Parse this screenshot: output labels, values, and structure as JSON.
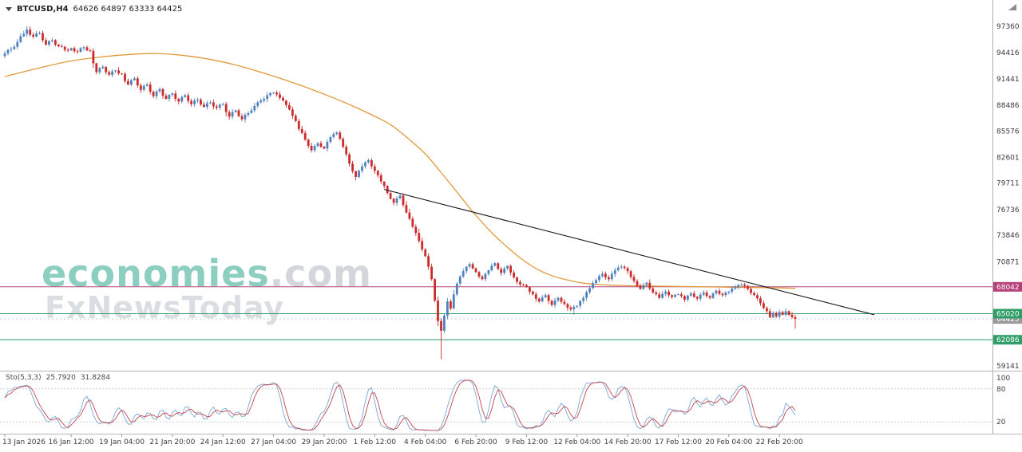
{
  "window": {
    "symbol_period": "BTCUSD,H4",
    "ohlc": "64626 64897 63333 64425"
  },
  "watermark": {
    "brand": "economies",
    "suffix": ".com",
    "subtitle": "FxNewsToday"
  },
  "indicator": {
    "name": "Sto(5,3,3)",
    "main_value": "25.7920",
    "signal_value": "31.8284"
  },
  "chart_data": {
    "type": "candlestick",
    "symbol": "BTCUSD",
    "timeframe": "H4",
    "current_bar": {
      "open": 64626,
      "high": 64897,
      "low": 63333,
      "close": 64425
    },
    "price_axis_ticks": [
      97360,
      94416,
      91441,
      88486,
      85576,
      82601,
      79711,
      76736,
      73846,
      70871,
      59141
    ],
    "line_levels": [
      {
        "price": 68042,
        "label": "68042",
        "color": "#b5407a"
      },
      {
        "price": 65020,
        "label": "65020",
        "color": "#2f9e68"
      },
      {
        "price": 62086,
        "label": "62086",
        "color": "#2f9e68"
      }
    ],
    "bid": {
      "price": 64425,
      "label": "64425",
      "color": "#9a9a9a"
    },
    "x_ticks": [
      {
        "i": 0,
        "label": "13 Jan 2026"
      },
      {
        "i": 21,
        "label": "16 Jan 12:00"
      },
      {
        "i": 37,
        "label": "19 Jan 04:00"
      },
      {
        "i": 53,
        "label": "21 Jan 20:00"
      },
      {
        "i": 69,
        "label": "24 Jan 12:00"
      },
      {
        "i": 85,
        "label": "27 Jan 04:00"
      },
      {
        "i": 101,
        "label": "29 Jan 20:00"
      },
      {
        "i": 117,
        "label": "1 Feb 12:00"
      },
      {
        "i": 133,
        "label": "4 Feb 04:00"
      },
      {
        "i": 149,
        "label": "6 Feb 20:00"
      },
      {
        "i": 165,
        "label": "9 Feb 12:00"
      },
      {
        "i": 181,
        "label": "12 Feb 04:00"
      },
      {
        "i": 197,
        "label": "14 Feb 20:00"
      },
      {
        "i": 213,
        "label": "17 Feb 12:00"
      },
      {
        "i": 229,
        "label": "20 Feb 04:00"
      },
      {
        "i": 245,
        "label": "22 Feb 20:00"
      }
    ],
    "colors": {
      "bull": "#4f81bd",
      "bear": "#cc2b2b",
      "ma": "#e09a3a",
      "trend": "#1a1a1a",
      "stoch_main": "#7ba7d8",
      "stoch_signal": "#c2454f"
    },
    "candles": {
      "first_open": 94000,
      "closes": [
        94300,
        94700,
        94800,
        95050,
        95600,
        96250,
        96500,
        97000,
        96400,
        96200,
        96550,
        96600,
        95800,
        95300,
        95700,
        95800,
        95300,
        95100,
        95050,
        94700,
        94650,
        94900,
        94550,
        94500,
        94900,
        95000,
        94650,
        94600,
        93200,
        92200,
        92650,
        92800,
        92200,
        91900,
        92300,
        92400,
        92050,
        92000,
        91200,
        90800,
        91300,
        91500,
        90700,
        90200,
        90650,
        90800,
        90000,
        89500,
        90050,
        90300,
        89550,
        89200,
        89650,
        89800,
        89200,
        88900,
        89400,
        89600,
        88950,
        88600,
        89000,
        89100,
        88550,
        88300,
        88700,
        88800,
        88350,
        88200,
        88550,
        88600,
        87700,
        87200,
        87700,
        87900,
        87250,
        86900,
        87400,
        87600,
        87900,
        88400,
        88800,
        89000,
        89200,
        89600,
        89850,
        89900,
        89700,
        89300,
        89000,
        88500,
        88000,
        87300,
        86700,
        85800,
        85350,
        84600,
        83900,
        83400,
        83900,
        84200,
        83800,
        83600,
        84350,
        84900,
        85250,
        85400,
        84700,
        83800,
        82950,
        81900,
        81050,
        80400,
        81100,
        81600,
        82050,
        82300,
        81600,
        81100,
        80600,
        79900,
        79400,
        78600,
        77950,
        77500,
        78000,
        78300,
        77250,
        76400,
        75700,
        74800,
        74100,
        73200,
        72250,
        71500,
        70300,
        68900,
        66500,
        64200,
        63100,
        64800,
        66400,
        65600,
        67200,
        68400,
        69200,
        69800,
        70300,
        70600,
        70100,
        69700,
        69200,
        68900,
        69500,
        69900,
        70400,
        70700,
        70050,
        69600,
        70100,
        70400,
        69650,
        69100,
        68600,
        68300,
        68250,
        68000,
        67500,
        67200,
        66700,
        66400,
        66850,
        67100,
        66450,
        66000,
        66500,
        66800,
        66350,
        66100,
        65700,
        65500,
        65800,
        65900,
        66450,
        66800,
        67450,
        67900,
        68450,
        68800,
        69250,
        69500,
        69100,
        68900,
        69500,
        69900,
        70200,
        70300,
        70150,
        69800,
        69150,
        68700,
        68150,
        67800,
        68250,
        68500,
        67850,
        67400,
        67200,
        66800,
        67250,
        67500,
        67100,
        66900,
        67150,
        67200,
        67000,
        66600,
        67050,
        67300,
        66900,
        66700,
        67150,
        67400,
        67000,
        66800,
        67300,
        67600,
        67250,
        67100,
        67400,
        67500,
        67850,
        68000,
        68250,
        68300,
        68150,
        67800,
        67350,
        67100,
        66750,
        66200,
        65650,
        65300,
        64600,
        65100,
        64700,
        65200,
        64900,
        65300,
        64900,
        64626,
        64425
      ],
      "wick_overrides": {
        "7": {
          "high": 97360
        },
        "120": {
          "high": 79700
        },
        "138": {
          "low": 59900
        },
        "180": {
          "low": 64900
        },
        "250": {
          "high": 64897,
          "low": 63333
        }
      }
    },
    "ma": {
      "anchors": [
        [
          0,
          91700
        ],
        [
          10,
          92600
        ],
        [
          20,
          93400
        ],
        [
          30,
          93900
        ],
        [
          40,
          94200
        ],
        [
          48,
          94300
        ],
        [
          56,
          94100
        ],
        [
          64,
          93700
        ],
        [
          72,
          93100
        ],
        [
          80,
          92300
        ],
        [
          88,
          91400
        ],
        [
          96,
          90400
        ],
        [
          104,
          89300
        ],
        [
          110,
          88400
        ],
        [
          116,
          87400
        ],
        [
          122,
          86300
        ],
        [
          128,
          84600
        ],
        [
          133,
          83000
        ],
        [
          138,
          80900
        ],
        [
          143,
          78700
        ],
        [
          148,
          76500
        ],
        [
          153,
          74500
        ],
        [
          158,
          72800
        ],
        [
          163,
          71300
        ],
        [
          168,
          70100
        ],
        [
          173,
          69300
        ],
        [
          178,
          68800
        ],
        [
          183,
          68450
        ],
        [
          188,
          68300
        ],
        [
          194,
          68200
        ],
        [
          200,
          68150
        ],
        [
          210,
          68100
        ],
        [
          220,
          68050
        ],
        [
          230,
          68000
        ],
        [
          240,
          67950
        ],
        [
          250,
          67880
        ]
      ]
    },
    "trendline": {
      "from": [
        120,
        79000
      ],
      "to": [
        275,
        64900
      ]
    },
    "stochastic": {
      "params": [
        5,
        3,
        3
      ],
      "levels": [
        80,
        20
      ],
      "axis_labels": [
        100,
        80,
        20
      ],
      "current_main": 25.792,
      "current_signal": 31.8284
    }
  }
}
